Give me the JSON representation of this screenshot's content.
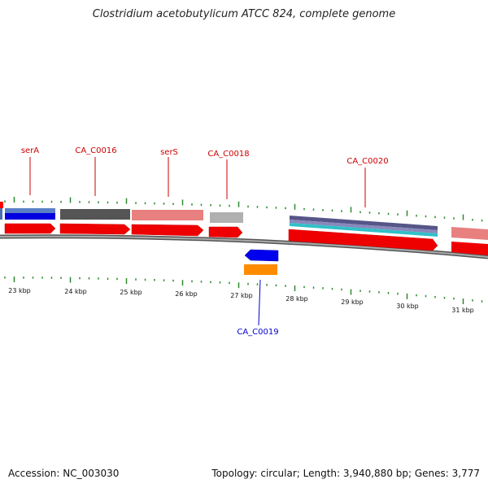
{
  "title": "Clostridium acetobutylicum ATCC 824, complete genome",
  "footer": {
    "accession": "Accession: NC_003030",
    "topology": "Topology: circular; Length: 3,940,880 bp; Genes: 3,777"
  },
  "colors": {
    "forward_cds": "#ff0000",
    "reverse_cds": "#0000ff",
    "reverse_sub": "#ff8c00",
    "forward_label": "#cc0000",
    "reverse_label": "#0000cc",
    "gc_skew_ticks": "#2e8b2e",
    "backbone": "#808080"
  },
  "ruler": {
    "labels": [
      "23 kbp",
      "24 kbp",
      "25 kbp",
      "26 kbp",
      "27 kbp",
      "28 kbp",
      "29 kbp",
      "30 kbp",
      "31 kbp"
    ]
  },
  "genes": [
    {
      "label": "serA",
      "strand": "forward"
    },
    {
      "label": "CA_C0016",
      "strand": "forward"
    },
    {
      "label": "serS",
      "strand": "forward"
    },
    {
      "label": "CA_C0018",
      "strand": "forward"
    },
    {
      "label": "CA_C0019",
      "strand": "reverse"
    },
    {
      "label": "CA_C0020",
      "strand": "forward"
    }
  ]
}
